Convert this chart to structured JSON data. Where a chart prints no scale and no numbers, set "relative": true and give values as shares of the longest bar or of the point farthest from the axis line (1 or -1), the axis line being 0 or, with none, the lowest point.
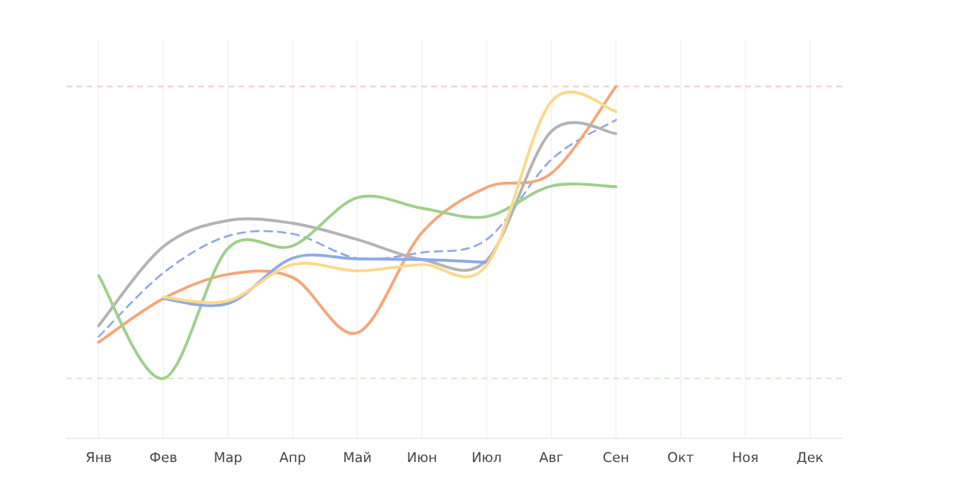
{
  "chart_data": {
    "type": "line",
    "relative": true,
    "tick_labels": "x",
    "grid": "x",
    "marker": "none",
    "categories": [
      "Янв",
      "Фев",
      "Мар",
      "Апр",
      "Май",
      "Июн",
      "Июл",
      "Авг",
      "Сен",
      "Окт",
      "Ноя",
      "Дек"
    ],
    "series": [
      {
        "color": "#8fa8e0",
        "line_style": "dashed",
        "values": [
          0.289,
          0.47,
          0.575,
          0.581,
          0.512,
          0.528,
          0.565,
          0.792,
          0.905,
          null,
          null,
          null
        ]
      },
      {
        "color": "#f4a77a",
        "values": [
          0.273,
          0.397,
          0.466,
          0.457,
          0.3,
          0.585,
          0.713,
          0.753,
          1.0,
          null,
          null,
          null
        ]
      },
      {
        "color": "#b3b3b3",
        "values": [
          0.32,
          0.545,
          0.619,
          0.611,
          0.565,
          0.508,
          0.506,
          0.872,
          0.866,
          null,
          null,
          null
        ]
      },
      {
        "color": "#9fd08a",
        "values": [
          0.462,
          0.17,
          0.54,
          0.547,
          0.684,
          0.654,
          0.63,
          0.717,
          0.715,
          null,
          null,
          null
        ]
      },
      {
        "color": "#8eaae6",
        "values": [
          null,
          0.397,
          0.383,
          0.512,
          0.51,
          0.508,
          0.5,
          null,
          null,
          null,
          null,
          null
        ]
      },
      {
        "color": "#fbd98a",
        "values": [
          null,
          0.401,
          0.391,
          0.494,
          0.476,
          0.494,
          0.492,
          0.957,
          0.929,
          null,
          null,
          null
        ]
      }
    ],
    "ref_lines": [
      {
        "axis": "y",
        "value": 1.0,
        "color": "#f8c8cc",
        "line_style": "dashed"
      },
      {
        "axis": "y",
        "value": 0.17,
        "color": "#c8ecc0",
        "line_style": "dashed"
      }
    ]
  }
}
